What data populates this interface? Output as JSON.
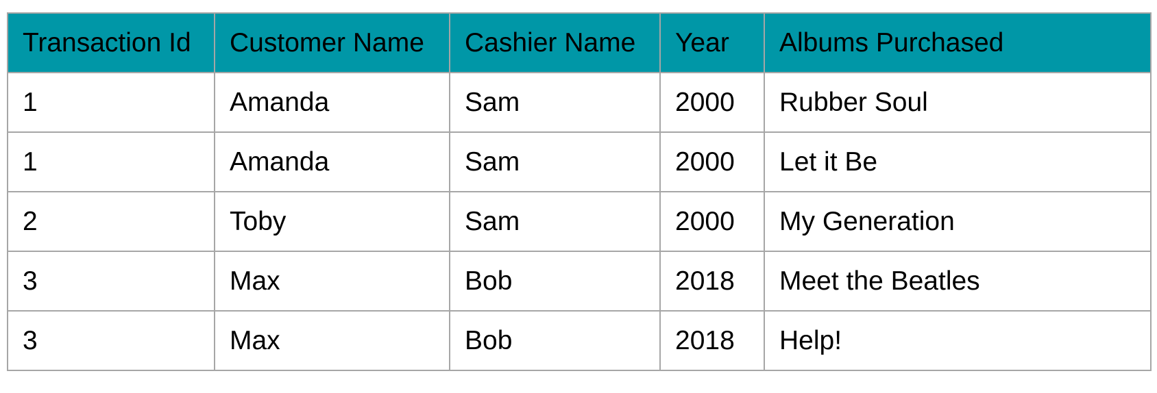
{
  "table": {
    "headers": [
      "Transaction Id",
      "Customer Name",
      "Cashier Name",
      "Year",
      "Albums Purchased"
    ],
    "rows": [
      [
        "1",
        "Amanda",
        "Sam",
        "2000",
        "Rubber Soul"
      ],
      [
        "1",
        "Amanda",
        "Sam",
        "2000",
        "Let it Be"
      ],
      [
        "2",
        "Toby",
        "Sam",
        "2000",
        "My Generation"
      ],
      [
        "3",
        "Max",
        "Bob",
        "2018",
        "Meet the Beatles"
      ],
      [
        "3",
        "Max",
        "Bob",
        "2018",
        "Help!"
      ]
    ]
  },
  "colors": {
    "header_background": "#0097a7",
    "border": "#a6a6a6",
    "text": "#000000"
  }
}
